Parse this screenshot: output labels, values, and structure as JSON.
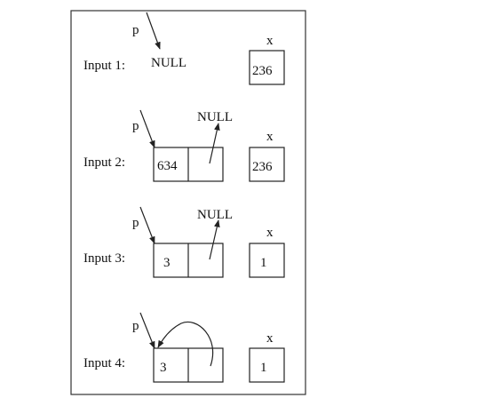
{
  "pointer_label": "p",
  "null_label": "NULL",
  "var_label": "x",
  "inputs": [
    {
      "label": "Input 1:",
      "list": [],
      "x": "236"
    },
    {
      "label": "Input 2:",
      "list": [
        "634"
      ],
      "next": "NULL",
      "x": "236"
    },
    {
      "label": "Input 3:",
      "list": [
        "3"
      ],
      "next": "NULL",
      "x": "1"
    },
    {
      "label": "Input 4:",
      "list": [
        "3"
      ],
      "next": "self",
      "x": "1"
    }
  ],
  "colors": {
    "stroke": "#222222",
    "background": "#ffffff"
  }
}
